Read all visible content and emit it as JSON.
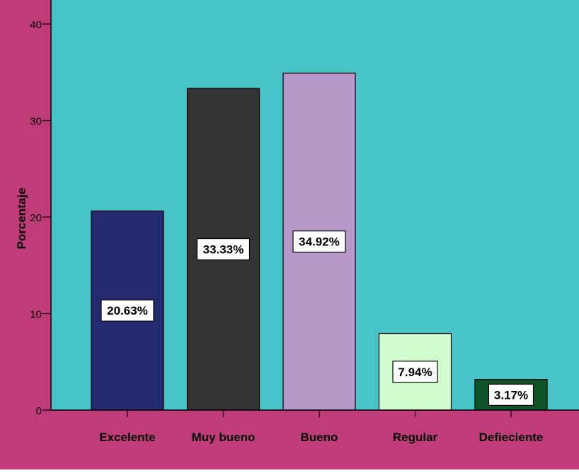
{
  "colors": {
    "background": "#C03C78",
    "plot_area": "#48C4C8",
    "axis": "#000000",
    "label_box": "#FFFFFF"
  },
  "chart_data": {
    "type": "bar",
    "categories": [
      "Excelente",
      "Muy bueno",
      "Bueno",
      "Regular",
      "Defieciente"
    ],
    "values": [
      20.63,
      33.33,
      34.92,
      7.94,
      3.17
    ],
    "data_labels": [
      "20.63%",
      "33.33%",
      "34.92%",
      "7.94%",
      "3.17%"
    ],
    "bar_colors": [
      "#262A70",
      "#333333",
      "#B898C8",
      "#D0FCD0",
      "#0F5428"
    ],
    "title": "",
    "xlabel": "",
    "ylabel": "Porcentaje",
    "ylim": [
      0,
      40
    ],
    "yticks": [
      0,
      10,
      20,
      30,
      40
    ],
    "ytick_labels": [
      "0",
      "10",
      "20",
      "30",
      "40"
    ],
    "grid": false,
    "legend": "none"
  }
}
